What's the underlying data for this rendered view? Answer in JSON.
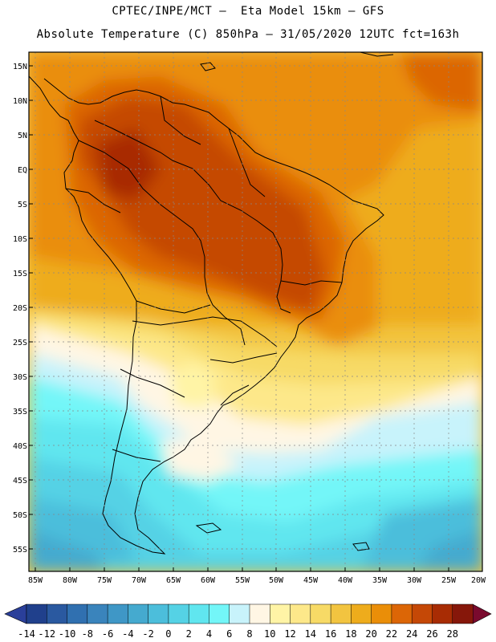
{
  "header": {
    "line1": "CPTEC/INPE/MCT –  Eta Model 15km – GFS",
    "line2": "Absolute Temperature (C) 850hPa – 31/05/2020 12UTC fct=163h"
  },
  "map": {
    "lat_labels": [
      "15N",
      "10N",
      "5N",
      "EQ",
      "5S",
      "10S",
      "15S",
      "20S",
      "25S",
      "30S",
      "35S",
      "40S",
      "45S",
      "50S",
      "55S"
    ],
    "lon_labels": [
      "85W",
      "80W",
      "75W",
      "70W",
      "65W",
      "60W",
      "55W",
      "50W",
      "45W",
      "40W",
      "35W",
      "30W",
      "25W",
      "20W"
    ]
  },
  "colorbar": {
    "labels": [
      "-14",
      "-12",
      "-10",
      "-8",
      "-6",
      "-4",
      "-2",
      "0",
      "2",
      "4",
      "6",
      "8",
      "10",
      "12",
      "14",
      "16",
      "18",
      "20",
      "22",
      "24",
      "26",
      "28"
    ],
    "colors": [
      "#20408c",
      "#2a59a0",
      "#3070b0",
      "#3a84bc",
      "#3f97c6",
      "#45aacf",
      "#4cbedb",
      "#55d2e5",
      "#60e6ef",
      "#73f6f8",
      "#c8f3fb",
      "#fff6e4",
      "#fff4a6",
      "#fde88a",
      "#f7da66",
      "#f2c440",
      "#eeac1c",
      "#ea8e08",
      "#dc6606",
      "#c54806",
      "#a82c04",
      "#86170a"
    ],
    "under_color": "#2a3f9a",
    "over_color": "#7a0a2e"
  }
}
